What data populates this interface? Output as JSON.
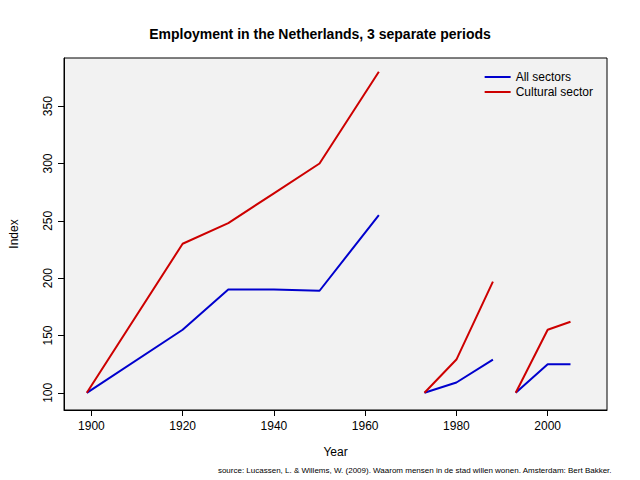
{
  "chart_data": {
    "type": "line",
    "title": "Employment in the Netherlands, 3 separate periods",
    "x_label": "Year",
    "y_label": "Index",
    "annotations": [
      "source: Lucassen, L. & Willems, W. (2009). Waarom mensen in de stad willen wonen. Amsterdam: Bert Bakker."
    ],
    "x": [
      1899,
      1920,
      1930,
      1940,
      1950,
      1963,
      1968,
      1973,
      1980,
      1988,
      1990,
      1993,
      2000,
      2005
    ],
    "series": [
      {
        "name": "All sectors",
        "color": "#0000cd",
        "values": [
          100,
          155,
          190,
          190,
          189,
          255,
          null,
          100,
          109,
          129,
          null,
          100,
          125,
          125
        ]
      },
      {
        "name": "Cultural sector",
        "color": "#cd0000",
        "values": [
          100,
          230,
          248,
          274,
          300,
          380,
          null,
          100,
          129,
          197,
          null,
          100,
          155,
          162
        ]
      }
    ],
    "xlim": [
      1894,
      2013
    ],
    "xticks": [
      1900,
      1920,
      1940,
      1960,
      1980,
      2000
    ],
    "ylim": [
      85,
      392
    ],
    "yticks": [
      100,
      150,
      200,
      250,
      300,
      350
    ],
    "grid": false,
    "legend": "upper right",
    "marker": "none"
  }
}
